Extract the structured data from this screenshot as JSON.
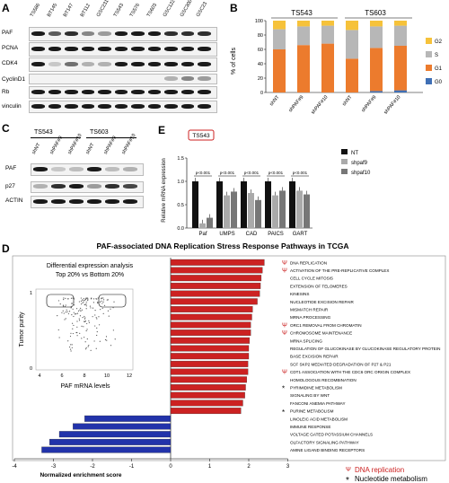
{
  "panels": {
    "a": "A",
    "b": "B",
    "c": "C",
    "d": "D",
    "e": "E"
  },
  "blot_a": {
    "lanes": [
      "TS586",
      "BT145",
      "BT147",
      "BT112",
      "GSC231",
      "TS543",
      "TS576",
      "TS603",
      "GSC122",
      "GSC300",
      "GSC23"
    ],
    "rows": [
      "PAF",
      "PCNA",
      "CDK4",
      "CyclinD1",
      "Rb",
      "vinculin"
    ]
  },
  "chart_b": {
    "groups": [
      "TS543",
      "TS603"
    ],
    "ylabel": "% of cells",
    "ylim": [
      0,
      100
    ],
    "yticks": [
      "0",
      "20",
      "40",
      "60",
      "80",
      "100"
    ],
    "legend": [
      "G2",
      "S",
      "G1",
      "G0"
    ],
    "colors": {
      "G2": "#f6c23a",
      "S": "#b7b7b7",
      "G1": "#ec7b2d",
      "G0": "#3f6fb5"
    }
  },
  "chart_data": [
    {
      "type": "bar",
      "title": "",
      "ylabel": "% of cells",
      "ylim": [
        0,
        100
      ],
      "categories": [
        "shNT",
        "shPAF#9",
        "shPAF#10",
        "shNT",
        "shPAF#9",
        "shPAF#10"
      ],
      "series": [
        {
          "name": "G0",
          "values": [
            0,
            0,
            0,
            0,
            2,
            3
          ]
        },
        {
          "name": "G1",
          "values": [
            60,
            66,
            68,
            47,
            60,
            62
          ]
        },
        {
          "name": "S",
          "values": [
            28,
            26,
            25,
            40,
            30,
            28
          ]
        },
        {
          "name": "G2",
          "values": [
            12,
            8,
            7,
            13,
            8,
            7
          ]
        }
      ]
    },
    {
      "type": "bar",
      "title": "TS543",
      "ylabel": "Relative mRNA expression",
      "ylim": [
        0,
        1.5
      ],
      "categories": [
        "Paf",
        "UMPS",
        "CAD",
        "PAICS",
        "GART"
      ],
      "series": [
        {
          "name": "NT",
          "values": [
            1.0,
            1.0,
            1.0,
            1.0,
            1.0
          ]
        },
        {
          "name": "shpaf9",
          "values": [
            0.1,
            0.7,
            0.75,
            0.7,
            0.8
          ]
        },
        {
          "name": "shpaf10",
          "values": [
            0.22,
            0.78,
            0.6,
            0.8,
            0.72
          ]
        }
      ]
    },
    {
      "type": "bar",
      "title": "PAF-associated DNA Replication Stress Response Pathways in TCGA",
      "xlabel": "Normalized enrichment score",
      "xlim": [
        -4,
        3
      ],
      "categories": [
        "DNA REPLICATION",
        "ACTIVATION OF THE PRE-REPLICATIVE COMPLEX",
        "CELL CYCLE MITOSIS",
        "EXTENSION OF TELOMERES",
        "KINESINS",
        "NUCLEOTIDE EXCISION REPAIR",
        "MISMATCH REPAIR",
        "MRNA PROCESSING",
        "ORC1 REMOVAL FROM CHROMATIN",
        "CHROMOSOME MAINTENANCE",
        "MRNA SPLICING",
        "REGULATION OF GLUCOKINASE BY GLUCOKINASE REGULATORY PROTEIN",
        "BASE EXCISION REPAIR",
        "SCF SKP2 MEDIATED DEGRADATION OF P27 & P21",
        "CDT1 ASSOCIATION WITH THE CDC6 ORC ORIGIN COMPLEX",
        "HOMOLOGOUS RECOMBINATION",
        "PYRIMIDINE METABOLISM",
        "SIGNALING BY WNT",
        "FANCONI ANEMIA PATHWAY",
        "PURINE METABOLISM",
        "LINOLEIC ACID METABOLISM",
        "IMMUNE RESPONSE",
        "VOLTAGE GATED POTASSIUM CHANNELS",
        "OLFACTORY SIGNALING PATHWAY",
        "AMINE LIGAND BINDING RECEPTORS"
      ],
      "values": [
        2.4,
        2.35,
        2.32,
        2.3,
        2.28,
        2.22,
        2.1,
        2.08,
        2.05,
        2.05,
        2.02,
        2.0,
        2.0,
        1.98,
        1.98,
        1.95,
        1.92,
        1.9,
        1.85,
        1.8,
        -2.2,
        -2.5,
        -2.85,
        -3.1,
        -3.3
      ],
      "xticks": [
        "-4",
        "-3",
        "-2",
        "-1",
        "0",
        "1",
        "2",
        "3"
      ]
    }
  ],
  "blot_c": {
    "groups": [
      "TS543",
      "TS603"
    ],
    "lanes": [
      "shNT",
      "shPAF#9",
      "shPAF#10",
      "shNT",
      "shPAF#9",
      "shPAF#10"
    ],
    "rows": [
      "PAF",
      "p27",
      "ACTIN"
    ]
  },
  "chart_e": {
    "boxed_title": "TS543",
    "pvalue": "p<0.001",
    "yticks": [
      "0.0",
      "0.5",
      "1.0",
      "1.5"
    ],
    "legend": [
      "NT",
      "shpaf9",
      "shpaf10"
    ],
    "colors": {
      "NT": "#111111",
      "shpaf9": "#aaaaaa",
      "shpaf10": "#777777"
    }
  },
  "chart_d": {
    "inset_title_1": "Differential expression analysis",
    "inset_title_2": "Top 20% vs Bottom 20%",
    "inset_ylabel": "Tumor purity",
    "inset_xlabel": "PAF mRNA levels",
    "inset_xticks": [
      "4",
      "6",
      "8",
      "10",
      "12"
    ],
    "inset_yticks": [
      "0",
      "1"
    ],
    "marks": {
      "psi": [
        "DNA REPLICATION",
        "ACTIVATION OF THE PRE-REPLICATIVE COMPLEX",
        "ORC1 REMOVAL FROM CHROMATIN",
        "CHROMOSOME MAINTENANCE",
        "CDT1 ASSOCIATION WITH THE CDC6 ORC ORIGIN COMPLEX"
      ],
      "star": [
        "PYRIMIDINE METABOLISM",
        "PURINE METABOLISM"
      ]
    },
    "legend_psi": "DNA replication",
    "legend_star": "Nucleotide metabolism",
    "psi_symbol": "Ψ",
    "star_symbol": "*",
    "pos_color": "#cc2222",
    "neg_color": "#2233aa"
  }
}
